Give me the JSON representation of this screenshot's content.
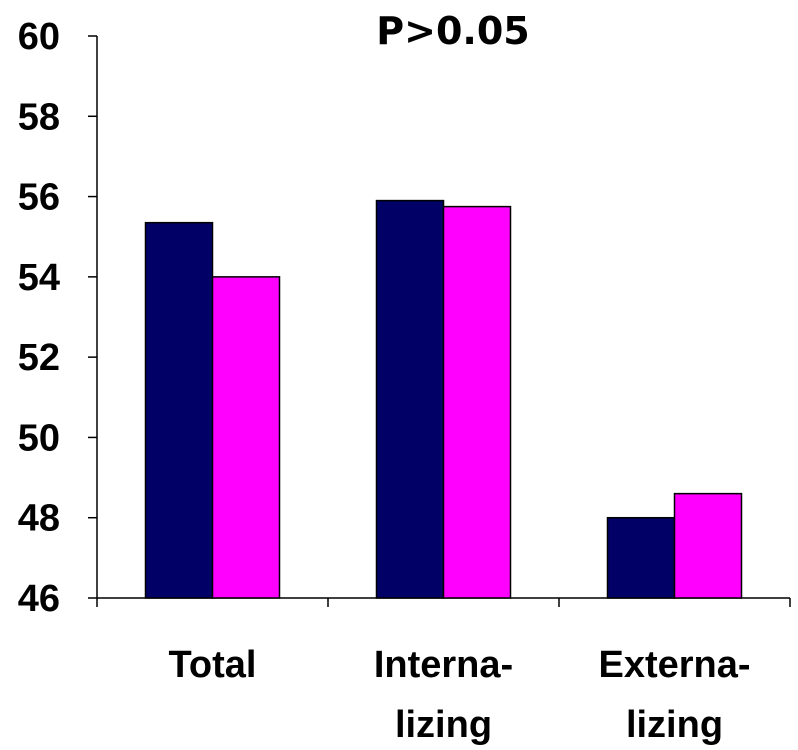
{
  "chart_data": {
    "type": "bar",
    "title": "P>0.05",
    "xlabel": "",
    "ylabel": "",
    "categories": [
      [
        "Total"
      ],
      [
        "Interna-",
        "lizing"
      ],
      [
        "Externa-",
        "lizing"
      ]
    ],
    "series": [
      {
        "color": "#000066",
        "values": [
          55.35,
          55.9,
          48.0
        ]
      },
      {
        "color": "#FF00FF",
        "values": [
          54.0,
          55.75,
          48.6
        ]
      }
    ],
    "ylim": [
      46,
      60
    ],
    "yticks": [
      46,
      48,
      50,
      52,
      54,
      56,
      58,
      60
    ],
    "grid": false,
    "legend": "none"
  }
}
